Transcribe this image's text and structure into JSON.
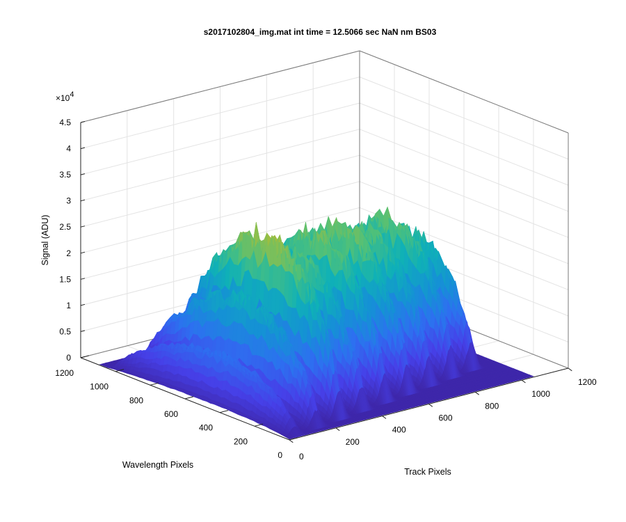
{
  "chart_data": {
    "type": "surface3d",
    "title": "s2017102804_img.mat int time = 12.5066 sec  NaN nm BS03",
    "xlabel": "Track Pixels",
    "ylabel": "Wavelength Pixels",
    "zlabel": "Signal (ADU)",
    "z_exponent_label": "×10",
    "z_exponent_value": "4",
    "xlim": [
      0,
      1200
    ],
    "ylim": [
      0,
      1200
    ],
    "zlim": [
      0,
      45000
    ],
    "x_ticks": [
      "0",
      "200",
      "400",
      "600",
      "800",
      "1000",
      "1200"
    ],
    "y_ticks": [
      "0",
      "200",
      "400",
      "600",
      "800",
      "1000",
      "1200"
    ],
    "z_ticks": [
      "0",
      "0.5",
      "1",
      "1.5",
      "2",
      "2.5",
      "3",
      "3.5",
      "4",
      "4.5"
    ],
    "grid": true,
    "colormap": "parula",
    "series": [
      {
        "track_center": 40,
        "peak_signal": 11000
      },
      {
        "track_center": 150,
        "peak_signal": 21000
      },
      {
        "track_center": 265,
        "peak_signal": 32000
      },
      {
        "track_center": 380,
        "peak_signal": 27000
      },
      {
        "track_center": 495,
        "peak_signal": 29000
      },
      {
        "track_center": 610,
        "peak_signal": 29000
      },
      {
        "track_center": 720,
        "peak_signal": 27000
      },
      {
        "track_center": 830,
        "peak_signal": 28000
      },
      {
        "track_center": 935,
        "peak_signal": 24000
      }
    ]
  }
}
